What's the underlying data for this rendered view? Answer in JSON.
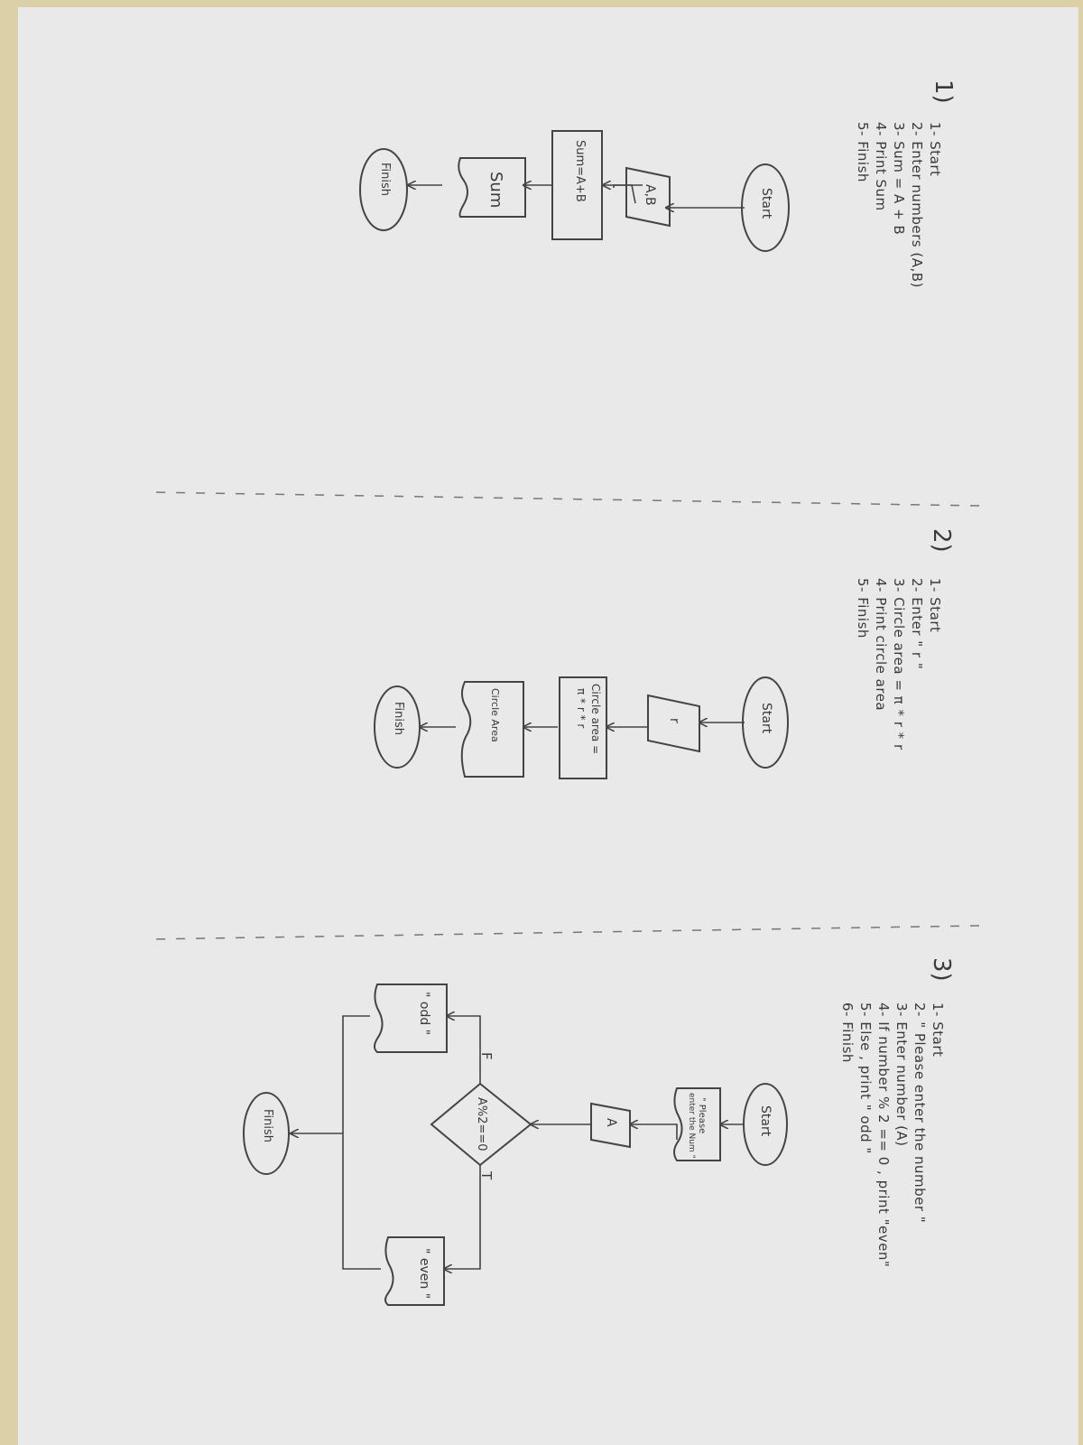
{
  "sections": [
    {
      "number": "1)",
      "steps": [
        "1- Start",
        "2- Enter  numbers (A,B)",
        "3- Sum = A + B",
        "4- Print   Sum",
        "5- Finish"
      ],
      "shapes": {
        "start": "Start",
        "input": "A,B",
        "process": "Sum=A+B",
        "output": "Sum",
        "end": "Finish"
      }
    },
    {
      "number": "2)",
      "steps": [
        "1- Start",
        "2- Enter  \" r \"",
        "3- Circle area = π * r * r",
        "4- Print  circle  area",
        "5- Finish"
      ],
      "shapes": {
        "start": "Start",
        "input": "r",
        "process_line1": "Circle area =",
        "process_line2": "π * r * r",
        "output": "Circle Area",
        "end": "Finish"
      }
    },
    {
      "number": "3)",
      "steps": [
        "1- Start",
        "2- \" Please  enter  the number \"",
        "3- Enter  number (A)",
        "4- If number % 2 == 0 , print \"even\"",
        "5- Else ,  print  \" odd \"",
        "6- Finish"
      ],
      "shapes": {
        "start": "Start",
        "prompt_line1": "\" Please",
        "prompt_line2": "enter the Num \"",
        "input": "A",
        "decision": "A%2==0",
        "true_label": "T",
        "false_label": "F",
        "even_output": "\" even \"",
        "odd_output": "\" odd \"",
        "end": "Finish"
      }
    }
  ]
}
